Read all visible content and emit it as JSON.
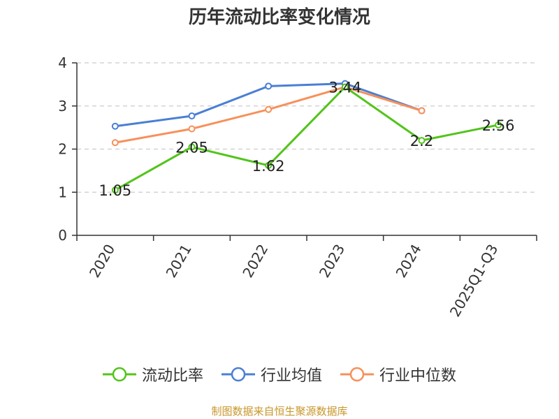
{
  "chart_data": {
    "type": "line",
    "title": "历年流动比率变化情况",
    "categories": [
      "2020",
      "2021",
      "2022",
      "2023",
      "2024",
      "2025Q1-Q3"
    ],
    "ylim": [
      0,
      4
    ],
    "yticks": [
      0,
      1,
      2,
      3,
      4
    ],
    "grid": true,
    "legend_position": "bottom",
    "series": [
      {
        "name": "流动比率",
        "color": "#52c41a",
        "values": [
          1.05,
          2.05,
          1.62,
          3.44,
          2.2,
          2.56
        ],
        "labels": [
          "1.05",
          "2.05",
          "1.62",
          "3.44",
          "2.2",
          "2.56"
        ]
      },
      {
        "name": "行业均值",
        "color": "#4a7fd4",
        "values": [
          2.53,
          2.77,
          3.46,
          3.52,
          2.89,
          null
        ]
      },
      {
        "name": "行业中位数",
        "color": "#f7905a",
        "values": [
          2.15,
          2.47,
          2.92,
          3.44,
          2.89,
          null
        ]
      }
    ]
  },
  "source": "制图数据来自恒生聚源数据库"
}
